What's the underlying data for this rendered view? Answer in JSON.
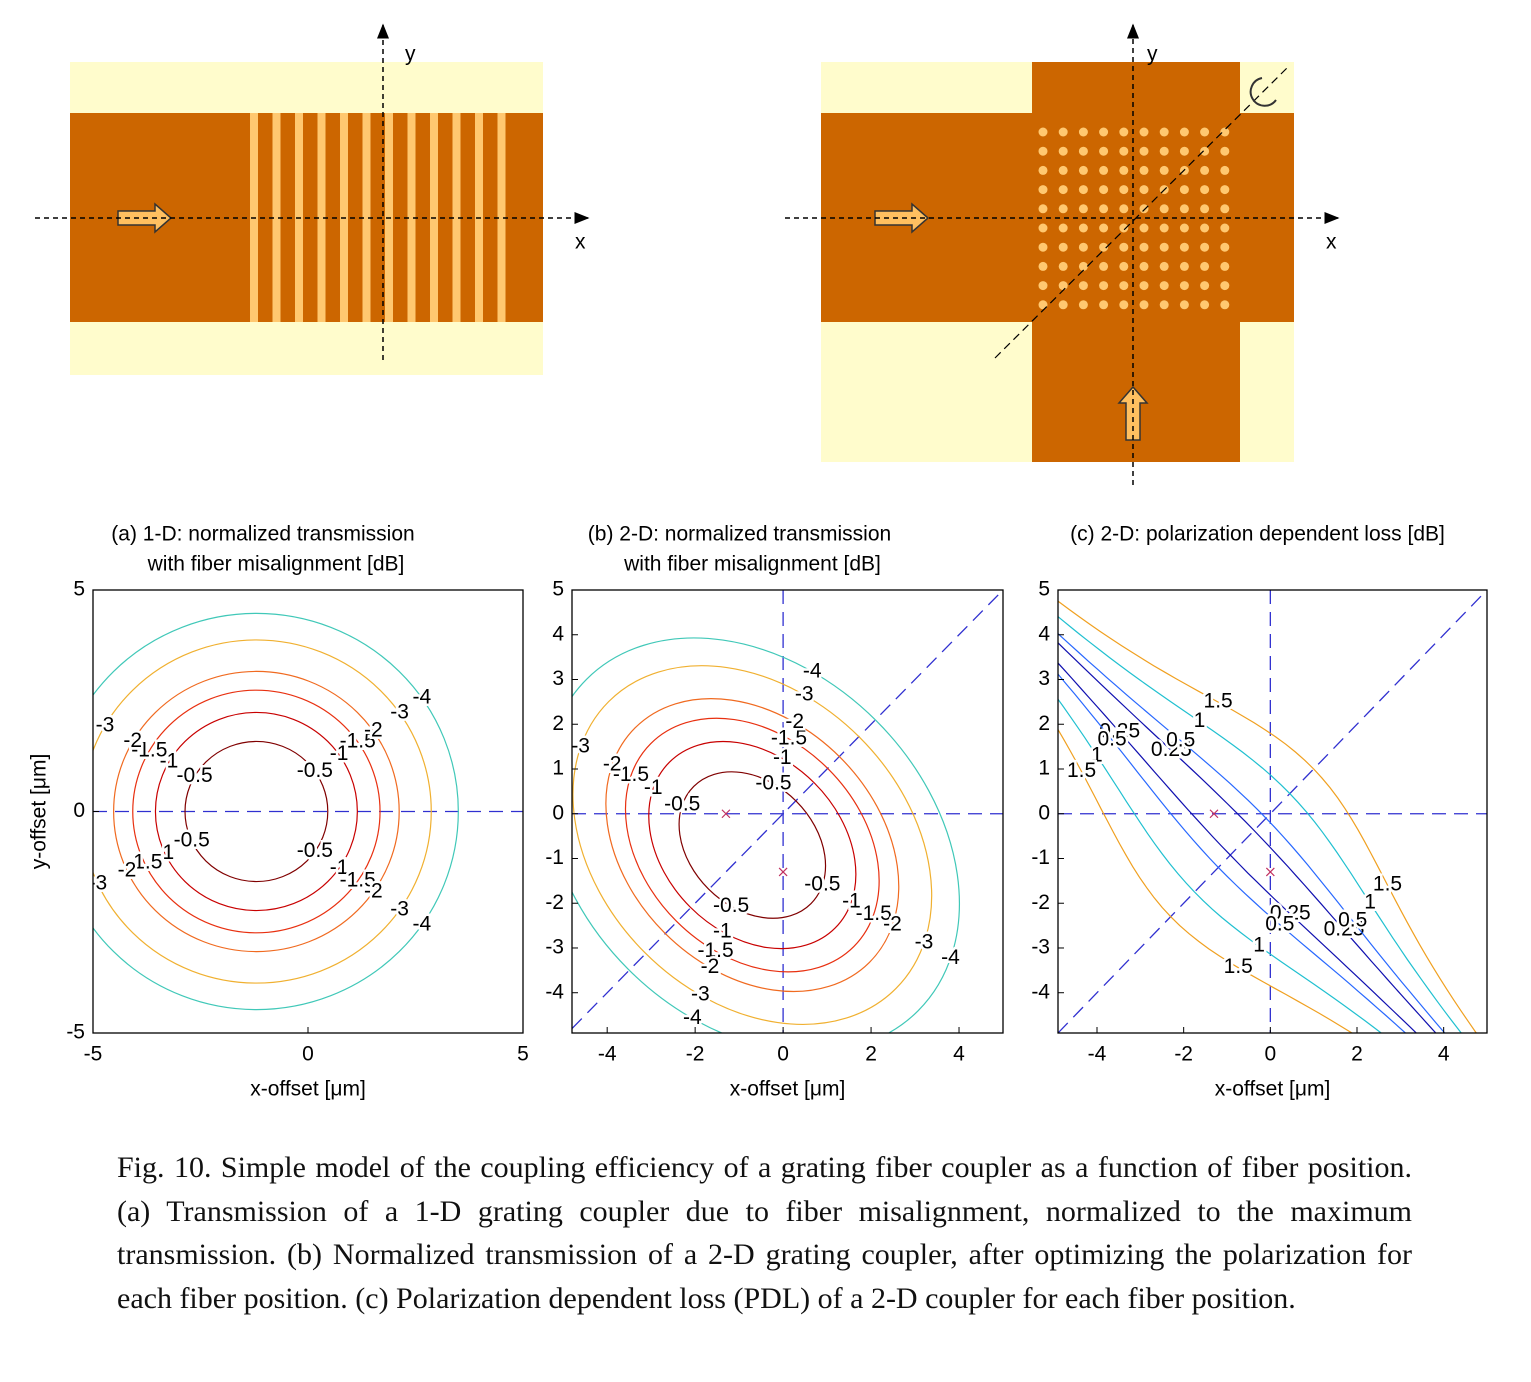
{
  "diagrams": [
    {
      "x_label": "x",
      "y_label": "y"
    },
    {
      "x_label": "x",
      "y_label": "y"
    }
  ],
  "chart_data": [
    {
      "type": "contour",
      "title": [
        "(a) 1-D: normalized transmission",
        "with fiber misalignment [dB]"
      ],
      "xlabel": "x-offset [μm]",
      "ylabel": "y-offset [μm]",
      "xlim": [
        -5,
        5
      ],
      "ylim": [
        -5,
        5
      ],
      "xticks": [
        -5,
        0,
        5
      ],
      "yticks": [
        -5,
        0,
        5
      ],
      "levels": [
        -0.5,
        -1,
        -1.5,
        -2,
        -3,
        -4
      ],
      "level_colors": [
        "#800000",
        "#c80000",
        "#e83010",
        "#f06a20",
        "#f0b030",
        "#40c8b8"
      ],
      "guides": [
        "h"
      ]
    },
    {
      "type": "contour",
      "title": [
        "(b) 2-D: normalized transmission",
        "with fiber misalignment [dB]"
      ],
      "xlabel": "x-offset [μm]",
      "xlim": [
        -4.8,
        5
      ],
      "ylim": [
        -4.9,
        5
      ],
      "xticks": [
        -4,
        -2,
        0,
        2,
        4
      ],
      "yticks": [
        -4,
        -3,
        -2,
        -1,
        0,
        1,
        2,
        3,
        4,
        5
      ],
      "levels": [
        -0.5,
        -1,
        -1.5,
        -2,
        -3,
        -4
      ],
      "level_colors": [
        "#800000",
        "#c80000",
        "#e83010",
        "#f06a20",
        "#f0b030",
        "#40c8b8"
      ],
      "guides": [
        "h",
        "v",
        "diag"
      ],
      "markers": {
        "x": [
          -1.3,
          0
        ],
        "y": [
          0,
          -1.3
        ]
      }
    },
    {
      "type": "contour",
      "title": [
        "(c) 2-D: polarization dependent loss [dB]"
      ],
      "xlabel": "x-offset [μm]",
      "xlim": [
        -4.9,
        5
      ],
      "ylim": [
        -4.9,
        5
      ],
      "xticks": [
        -4,
        -2,
        0,
        2,
        4
      ],
      "yticks": [
        -4,
        -3,
        -2,
        -1,
        0,
        1,
        2,
        3,
        4,
        5
      ],
      "levels": [
        0.25,
        0.5,
        1,
        1.5
      ],
      "level_colors": [
        "#1010b0",
        "#2868ff",
        "#20c0d0",
        "#f0a020"
      ],
      "guides": [
        "h",
        "v",
        "diag"
      ],
      "markers": {
        "x": [
          -1.3,
          0
        ],
        "y": [
          0,
          -1.3
        ]
      }
    }
  ],
  "caption": "Fig. 10. Simple model of the coupling efficiency of a grating fiber coupler as a function of fiber position. (a) Transmission of a 1-D grating coupler due to fiber misalignment, normalized to the maximum transmission. (b) Normalized transmission of a 2-D grating coupler, after optimizing the polarization for each fiber position. (c) Polarization dependent loss (PDL) of a 2-D coupler for each fiber position."
}
